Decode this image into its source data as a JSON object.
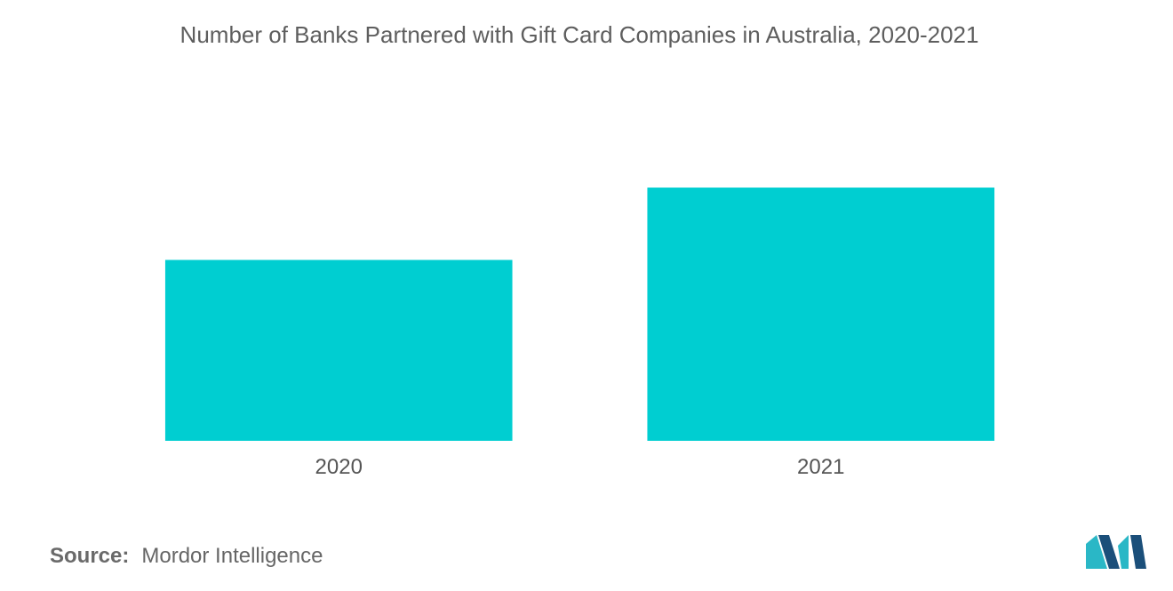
{
  "chart_data": {
    "type": "bar",
    "title": "Number of Banks Partnered with Gift Card Companies in Australia, 2020-2021",
    "categories": [
      "2020",
      "2021"
    ],
    "values": [
      5,
      7
    ],
    "ylim": [
      0,
      8.5
    ],
    "xlabel": "",
    "ylabel": "",
    "grid": false,
    "bar_color": "#00CED1"
  },
  "source": {
    "label": "Source:",
    "value": "Mordor Intelligence"
  },
  "colors": {
    "title": "#5e5e5e",
    "axis_text": "#555555",
    "logo_dark": "#1b4f7a",
    "logo_light": "#2ab7c6"
  }
}
